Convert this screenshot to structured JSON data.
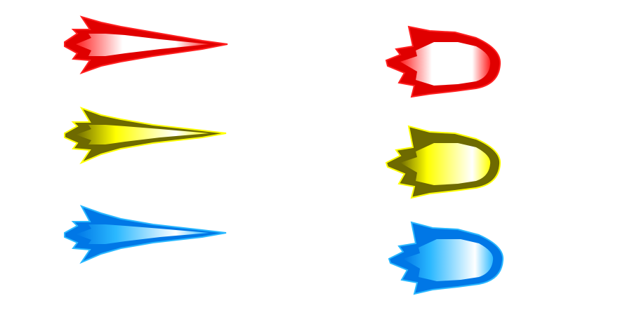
{
  "sprite_sheet": {
    "background": "#ffffff",
    "sprites": [
      {
        "name": "flame-red-pointed",
        "shape": "pointed",
        "colors": {
          "dark": "#e00000",
          "mid": "#ff2020",
          "core": "#ffffff"
        }
      },
      {
        "name": "flame-yellow-pointed",
        "shape": "pointed",
        "colors": {
          "dark": "#6e6a00",
          "mid": "#ffff00",
          "core": "#ffffff"
        }
      },
      {
        "name": "flame-blue-pointed",
        "shape": "pointed",
        "colors": {
          "dark": "#0077e6",
          "mid": "#2ab8ff",
          "core": "#ffffff"
        }
      },
      {
        "name": "flame-red-round",
        "shape": "round",
        "colors": {
          "dark": "#e00000",
          "mid": "#ff2020",
          "core": "#ffffff"
        }
      },
      {
        "name": "flame-yellow-round",
        "shape": "round",
        "colors": {
          "dark": "#6e6a00",
          "mid": "#ffff00",
          "core": "#ffffff"
        }
      },
      {
        "name": "flame-blue-round",
        "shape": "round",
        "colors": {
          "dark": "#0077e6",
          "mid": "#2ab8ff",
          "core": "#ffffff"
        }
      }
    ]
  }
}
